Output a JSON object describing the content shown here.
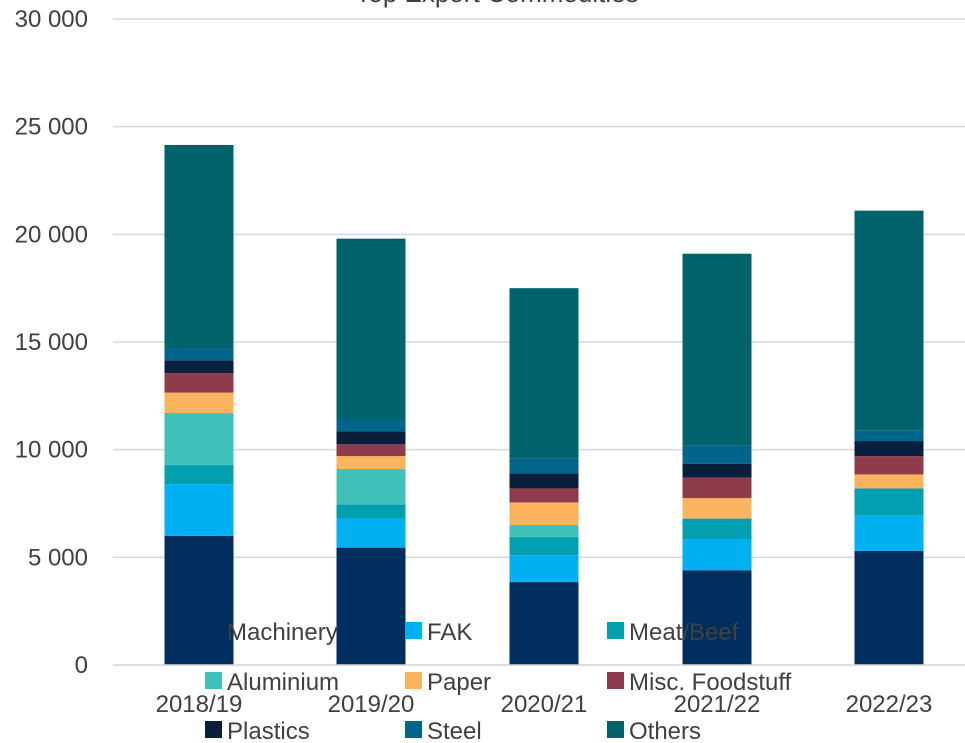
{
  "chart_data": {
    "type": "bar",
    "stacked": true,
    "title": "Top Export Commodities",
    "xlabel": "",
    "ylabel": "",
    "ylim": [
      0,
      30000
    ],
    "yticks": [
      0,
      5000,
      10000,
      15000,
      20000,
      25000,
      30000
    ],
    "ytick_labels": [
      "0",
      "5 000",
      "10 000",
      "15 000",
      "20 000",
      "25 000",
      "30 000"
    ],
    "grid": true,
    "legend_position": "bottom",
    "categories": [
      "2018/19",
      "2019/20",
      "2020/21",
      "2021/22",
      "2022/23"
    ],
    "series": [
      {
        "name": "Machinery",
        "color": "#002f5f",
        "values": [
          6000,
          5450,
          3850,
          4400,
          5300
        ]
      },
      {
        "name": "FAK",
        "color": "#00b0f0",
        "values": [
          2400,
          1350,
          1250,
          1450,
          1650
        ]
      },
      {
        "name": "Meat/Beef",
        "color": "#00a0b0",
        "values": [
          900,
          650,
          850,
          950,
          1250
        ]
      },
      {
        "name": "Aluminium",
        "color": "#3fc0b9",
        "values": [
          2400,
          1650,
          550,
          0,
          0
        ]
      },
      {
        "name": "Paper",
        "color": "#fbb45d",
        "values": [
          950,
          600,
          1050,
          950,
          650
        ]
      },
      {
        "name": "Misc. Foodstuff",
        "color": "#8e3b4c",
        "values": [
          900,
          550,
          650,
          950,
          850
        ]
      },
      {
        "name": "Plastics",
        "color": "#0a1f3d",
        "values": [
          600,
          600,
          700,
          650,
          700
        ]
      },
      {
        "name": "Steel",
        "color": "#00658a",
        "values": [
          550,
          550,
          700,
          850,
          500
        ]
      },
      {
        "name": "Others",
        "color": "#00636b",
        "values": [
          9450,
          8400,
          7900,
          8900,
          10200
        ]
      }
    ]
  }
}
